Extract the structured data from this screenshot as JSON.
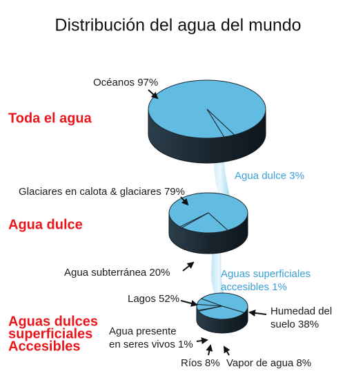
{
  "title": "Distribución del agua del mundo",
  "groups": [
    {
      "label_lines": [
        "Toda el agua"
      ],
      "slices": [
        {
          "lines": [
            "Océanos 97%"
          ],
          "value": 97
        },
        {
          "lines": [
            "Agua dulce 3%"
          ],
          "value": 3
        }
      ]
    },
    {
      "label_lines": [
        "Agua dulce"
      ],
      "slices": [
        {
          "lines": [
            "Glaciares en calota & glaciares 79%"
          ],
          "value": 79
        },
        {
          "lines": [
            "Agua subterránea 20%"
          ],
          "value": 20
        },
        {
          "lines": [
            "Aguas superficiales",
            "accesibles 1%"
          ],
          "value": 1
        }
      ]
    },
    {
      "label_lines": [
        "Aguas dulces",
        "superficiales",
        "Accesibles"
      ],
      "slices": [
        {
          "lines": [
            "Lagos 52%"
          ],
          "value": 52
        },
        {
          "lines": [
            "Humedad del",
            "suelo 38%"
          ],
          "value": 38
        },
        {
          "lines": [
            "Agua presente",
            "en seres vivos 1%"
          ],
          "value": 1
        },
        {
          "lines": [
            "Ríos 8%"
          ],
          "value": 8
        },
        {
          "lines": [
            "Vapor de agua 8%"
          ],
          "value": 8
        }
      ]
    }
  ]
}
